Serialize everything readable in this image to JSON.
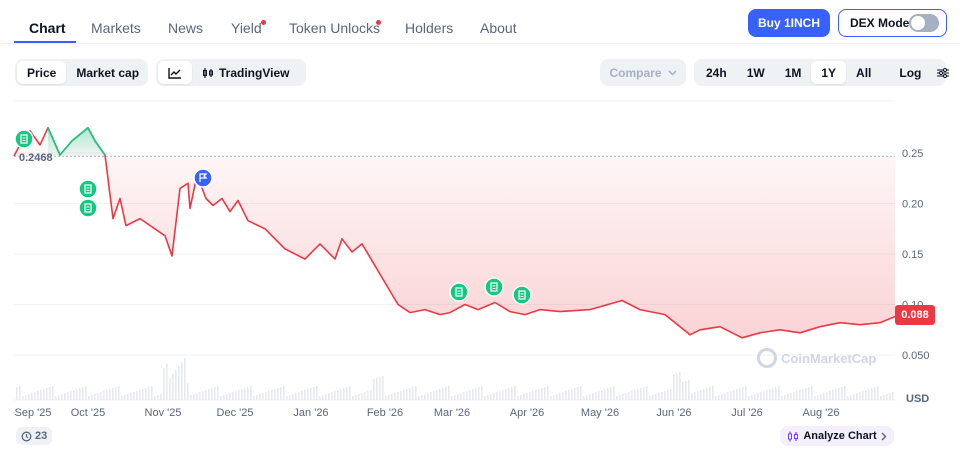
{
  "nav": {
    "tabs": [
      {
        "label": "Chart",
        "active": true
      },
      {
        "label": "Markets"
      },
      {
        "label": "News"
      },
      {
        "label": "Yield",
        "dot": true
      },
      {
        "label": "Token Unlocks",
        "dot": true
      },
      {
        "label": "Holders"
      },
      {
        "label": "About"
      }
    ],
    "buy_label": "Buy 1INCH",
    "dex_label": "DEX Mode",
    "dex_on": false
  },
  "controls": {
    "metric": [
      "Price",
      "Market cap"
    ],
    "active_metric": "Price",
    "tradingview_label": "TradingView",
    "compare_label": "Compare",
    "ranges": [
      "24h",
      "1W",
      "1M",
      "1Y",
      "All"
    ],
    "active_range": "1Y",
    "log_label": "Log"
  },
  "current_price": "0.088",
  "start_price": "0.2468",
  "watermark": "CoinMarketCap",
  "events_count": "23",
  "analyze_label": "Analyze Chart",
  "colors": {
    "accent": "#3861fb",
    "up": "#16c784",
    "down": "#ea3943",
    "grid": "#eff2f5",
    "muted": "#58667e"
  },
  "chart_data": {
    "type": "line",
    "currency_label": "USD",
    "ylim": [
      0.04,
      0.29
    ],
    "yticks": [
      "0.25",
      "0.20",
      "0.15",
      "0.10",
      "0.050"
    ],
    "ytick_values": [
      0.25,
      0.2,
      0.15,
      0.1,
      0.05
    ],
    "xticks": [
      "Sep '25",
      "Oct '25",
      "Nov '25",
      "Dec '25",
      "Jan '26",
      "Feb '26",
      "Mar '26",
      "Apr '26",
      "May '26",
      "Jun '26",
      "Jul '26",
      "Aug '26"
    ],
    "reference_price": 0.2468,
    "series": [
      {
        "x": [
          "Sep '25",
          "Sep '25",
          "Sep '25",
          "Sep '25",
          "Sep '25",
          "Oct '25",
          "Oct '25",
          "Oct '25",
          "Oct '25",
          "Oct '25",
          "Oct '25",
          "Oct '25",
          "Oct '25",
          "Oct '25",
          "Oct '25",
          "Nov '25",
          "Nov '25",
          "Nov '25",
          "Nov '25",
          "Nov '25",
          "Nov '25",
          "Nov '25",
          "Nov '25",
          "Dec '25",
          "Dec '25",
          "Dec '25",
          "Dec '25",
          "Dec '25",
          "Jan '26",
          "Jan '26",
          "Jan '26",
          "Jan '26",
          "Jan '26",
          "Jan '26",
          "Jan '26",
          "Feb '26",
          "Feb '26",
          "Feb '26",
          "Feb '26",
          "Mar '26",
          "Mar '26",
          "Mar '26",
          "Mar '26",
          "Apr '26",
          "Apr '26",
          "Apr '26",
          "May '26",
          "May '26",
          "May '26",
          "May '26",
          "Jun '26",
          "Jun '26",
          "Jun '26",
          "Jun '26",
          "Jul '26",
          "Jul '26",
          "Jul '26",
          "Aug '26",
          "Aug '26",
          "Aug '26",
          "Aug '26",
          "Aug '26",
          "Aug '26"
        ],
        "values": [
          0.247,
          0.262,
          0.272,
          0.258,
          0.275,
          0.248,
          0.255,
          0.262,
          0.275,
          0.262,
          0.248,
          0.185,
          0.205,
          0.178,
          0.185,
          0.168,
          0.148,
          0.215,
          0.22,
          0.195,
          0.228,
          0.205,
          0.198,
          0.205,
          0.192,
          0.203,
          0.183,
          0.175,
          0.155,
          0.145,
          0.16,
          0.145,
          0.165,
          0.152,
          0.16,
          0.1,
          0.092,
          0.095,
          0.09,
          0.092,
          0.1,
          0.095,
          0.102,
          0.093,
          0.09,
          0.095,
          0.093,
          0.095,
          0.104,
          0.095,
          0.09,
          0.07,
          0.075,
          0.078,
          0.067,
          0.072,
          0.075,
          0.072,
          0.078,
          0.082,
          0.08,
          0.082,
          0.088
        ]
      }
    ],
    "event_markers": [
      {
        "x": "Sep '25",
        "type": "document"
      },
      {
        "x": "Oct '25",
        "type": "document"
      },
      {
        "x": "Oct '25",
        "type": "document"
      },
      {
        "x": "Nov '25",
        "type": "flag"
      },
      {
        "x": "Mar '26",
        "type": "document"
      },
      {
        "x": "Mar '26",
        "type": "document"
      },
      {
        "x": "Apr '26",
        "type": "document"
      }
    ]
  }
}
